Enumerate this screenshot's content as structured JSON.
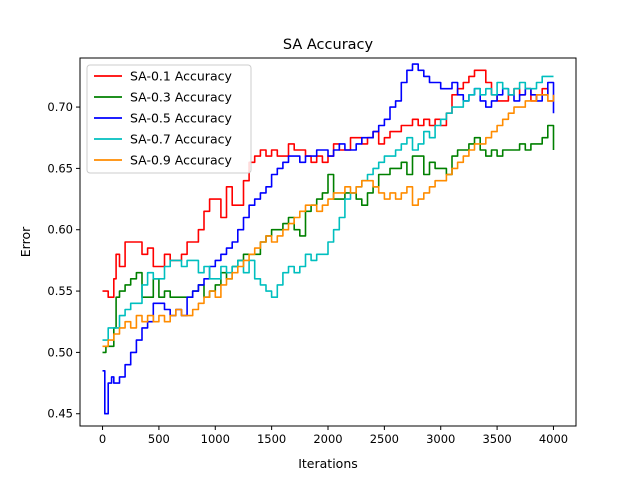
{
  "chart_data": {
    "type": "line",
    "title": "SA Accuracy",
    "xlabel": "Iterations",
    "ylabel": "Error",
    "xlim": [
      -200,
      4200
    ],
    "ylim": [
      0.44,
      0.74
    ],
    "xticks": [
      0,
      500,
      1000,
      1500,
      2000,
      2500,
      3000,
      3500,
      4000
    ],
    "xtick_labels": [
      "0",
      "500",
      "1000",
      "1500",
      "2000",
      "2500",
      "3000",
      "3500",
      "4000"
    ],
    "yticks": [
      0.45,
      0.5,
      0.55,
      0.6,
      0.65,
      0.7
    ],
    "ytick_labels": [
      "0.45",
      "0.50",
      "0.55",
      "0.60",
      "0.65",
      "0.70"
    ],
    "grid": false,
    "legend_position": "upper-left",
    "series": [
      {
        "name": "SA-0.1 Accuracy",
        "color": "#ff0000",
        "x": [
          0,
          50,
          100,
          120,
          150,
          200,
          250,
          300,
          350,
          400,
          450,
          500,
          550,
          600,
          650,
          700,
          750,
          800,
          850,
          900,
          950,
          1000,
          1050,
          1100,
          1150,
          1200,
          1250,
          1300,
          1350,
          1400,
          1450,
          1500,
          1550,
          1600,
          1650,
          1700,
          1750,
          1800,
          1850,
          1900,
          1950,
          2000,
          2050,
          2100,
          2150,
          2200,
          2250,
          2300,
          2350,
          2400,
          2450,
          2500,
          2550,
          2600,
          2650,
          2700,
          2750,
          2800,
          2850,
          2900,
          2950,
          3000,
          3050,
          3100,
          3150,
          3200,
          3250,
          3300,
          3350,
          3400,
          3450,
          3500,
          3550,
          3600,
          3650,
          3700,
          3750,
          3800,
          3850,
          3900,
          3950,
          4000
        ],
        "y": [
          0.55,
          0.545,
          0.56,
          0.58,
          0.57,
          0.59,
          0.59,
          0.59,
          0.58,
          0.585,
          0.57,
          0.57,
          0.58,
          0.575,
          0.575,
          0.58,
          0.59,
          0.59,
          0.6,
          0.615,
          0.625,
          0.625,
          0.61,
          0.635,
          0.62,
          0.62,
          0.64,
          0.655,
          0.66,
          0.665,
          0.66,
          0.665,
          0.66,
          0.66,
          0.67,
          0.665,
          0.665,
          0.66,
          0.655,
          0.66,
          0.655,
          0.66,
          0.67,
          0.665,
          0.665,
          0.675,
          0.675,
          0.67,
          0.675,
          0.68,
          0.67,
          0.675,
          0.68,
          0.68,
          0.685,
          0.685,
          0.69,
          0.685,
          0.69,
          0.685,
          0.69,
          0.685,
          0.695,
          0.71,
          0.715,
          0.72,
          0.725,
          0.73,
          0.73,
          0.72,
          0.71,
          0.705,
          0.705,
          0.71,
          0.715,
          0.71,
          0.715,
          0.705,
          0.71,
          0.715,
          0.705,
          0.705
        ]
      },
      {
        "name": "SA-0.3 Accuracy",
        "color": "#008000",
        "x": [
          0,
          30,
          60,
          100,
          120,
          150,
          200,
          250,
          300,
          350,
          400,
          450,
          500,
          550,
          600,
          650,
          700,
          750,
          800,
          850,
          900,
          950,
          1000,
          1050,
          1100,
          1150,
          1200,
          1250,
          1300,
          1350,
          1400,
          1450,
          1500,
          1550,
          1600,
          1650,
          1700,
          1750,
          1800,
          1850,
          1900,
          1950,
          2000,
          2050,
          2100,
          2150,
          2200,
          2250,
          2300,
          2350,
          2400,
          2450,
          2500,
          2550,
          2600,
          2650,
          2700,
          2750,
          2800,
          2850,
          2900,
          2950,
          3000,
          3050,
          3100,
          3150,
          3200,
          3250,
          3300,
          3350,
          3400,
          3450,
          3500,
          3550,
          3600,
          3650,
          3700,
          3750,
          3800,
          3850,
          3900,
          3950,
          4000
        ],
        "y": [
          0.5,
          0.505,
          0.505,
          0.52,
          0.545,
          0.55,
          0.555,
          0.56,
          0.565,
          0.545,
          0.545,
          0.56,
          0.545,
          0.55,
          0.545,
          0.545,
          0.545,
          0.545,
          0.55,
          0.555,
          0.545,
          0.55,
          0.555,
          0.565,
          0.56,
          0.57,
          0.575,
          0.58,
          0.58,
          0.58,
          0.59,
          0.595,
          0.6,
          0.6,
          0.605,
          0.61,
          0.6,
          0.595,
          0.615,
          0.62,
          0.625,
          0.63,
          0.645,
          0.625,
          0.625,
          0.63,
          0.63,
          0.625,
          0.62,
          0.63,
          0.635,
          0.645,
          0.645,
          0.65,
          0.65,
          0.655,
          0.645,
          0.66,
          0.66,
          0.645,
          0.655,
          0.65,
          0.65,
          0.645,
          0.66,
          0.665,
          0.665,
          0.67,
          0.675,
          0.665,
          0.66,
          0.665,
          0.66,
          0.665,
          0.665,
          0.665,
          0.67,
          0.665,
          0.67,
          0.67,
          0.675,
          0.685,
          0.665
        ]
      },
      {
        "name": "SA-0.5 Accuracy",
        "color": "#0000ff",
        "x": [
          0,
          20,
          50,
          80,
          100,
          150,
          200,
          250,
          300,
          350,
          400,
          450,
          500,
          550,
          600,
          650,
          700,
          750,
          800,
          850,
          900,
          950,
          1000,
          1050,
          1100,
          1150,
          1200,
          1250,
          1300,
          1350,
          1400,
          1450,
          1500,
          1550,
          1600,
          1650,
          1700,
          1750,
          1800,
          1850,
          1900,
          1950,
          2000,
          2050,
          2100,
          2150,
          2200,
          2250,
          2300,
          2350,
          2400,
          2450,
          2500,
          2550,
          2600,
          2650,
          2700,
          2750,
          2800,
          2850,
          2900,
          2950,
          3000,
          3050,
          3100,
          3150,
          3200,
          3250,
          3300,
          3350,
          3400,
          3450,
          3500,
          3550,
          3600,
          3650,
          3700,
          3750,
          3800,
          3850,
          3900,
          3950,
          4000
        ],
        "y": [
          0.485,
          0.45,
          0.475,
          0.48,
          0.475,
          0.48,
          0.49,
          0.5,
          0.51,
          0.52,
          0.525,
          0.54,
          0.54,
          0.535,
          0.53,
          0.535,
          0.53,
          0.545,
          0.55,
          0.555,
          0.56,
          0.57,
          0.575,
          0.58,
          0.585,
          0.59,
          0.6,
          0.61,
          0.62,
          0.625,
          0.63,
          0.635,
          0.645,
          0.65,
          0.655,
          0.66,
          0.66,
          0.655,
          0.66,
          0.66,
          0.665,
          0.665,
          0.66,
          0.665,
          0.67,
          0.665,
          0.665,
          0.67,
          0.675,
          0.675,
          0.68,
          0.685,
          0.69,
          0.7,
          0.705,
          0.72,
          0.73,
          0.735,
          0.73,
          0.725,
          0.72,
          0.72,
          0.715,
          0.715,
          0.72,
          0.71,
          0.705,
          0.71,
          0.715,
          0.705,
          0.7,
          0.705,
          0.71,
          0.715,
          0.71,
          0.705,
          0.71,
          0.715,
          0.71,
          0.705,
          0.71,
          0.72,
          0.695
        ]
      },
      {
        "name": "SA-0.7 Accuracy",
        "color": "#00bfbf",
        "x": [
          0,
          50,
          100,
          150,
          200,
          250,
          300,
          350,
          400,
          450,
          500,
          550,
          600,
          650,
          700,
          750,
          800,
          850,
          900,
          950,
          1000,
          1050,
          1100,
          1150,
          1200,
          1250,
          1300,
          1350,
          1400,
          1450,
          1500,
          1550,
          1600,
          1650,
          1700,
          1750,
          1800,
          1850,
          1900,
          1950,
          2000,
          2050,
          2100,
          2150,
          2200,
          2250,
          2300,
          2350,
          2400,
          2450,
          2500,
          2550,
          2600,
          2650,
          2700,
          2750,
          2800,
          2850,
          2900,
          2950,
          3000,
          3050,
          3100,
          3150,
          3200,
          3250,
          3300,
          3350,
          3400,
          3450,
          3500,
          3550,
          3600,
          3650,
          3700,
          3750,
          3800,
          3850,
          3900,
          3950,
          4000
        ],
        "y": [
          0.51,
          0.52,
          0.52,
          0.53,
          0.535,
          0.54,
          0.54,
          0.555,
          0.565,
          0.56,
          0.56,
          0.57,
          0.575,
          0.575,
          0.57,
          0.575,
          0.575,
          0.565,
          0.57,
          0.56,
          0.56,
          0.57,
          0.565,
          0.57,
          0.575,
          0.565,
          0.575,
          0.56,
          0.555,
          0.55,
          0.545,
          0.555,
          0.565,
          0.57,
          0.565,
          0.57,
          0.58,
          0.575,
          0.58,
          0.58,
          0.59,
          0.6,
          0.61,
          0.625,
          0.63,
          0.635,
          0.64,
          0.645,
          0.65,
          0.655,
          0.66,
          0.66,
          0.665,
          0.67,
          0.675,
          0.665,
          0.67,
          0.68,
          0.675,
          0.685,
          0.69,
          0.695,
          0.7,
          0.7,
          0.705,
          0.71,
          0.715,
          0.71,
          0.715,
          0.71,
          0.72,
          0.715,
          0.71,
          0.715,
          0.72,
          0.715,
          0.715,
          0.72,
          0.725,
          0.725,
          0.725
        ]
      },
      {
        "name": "SA-0.9 Accuracy",
        "color": "#ff8c00",
        "x": [
          0,
          50,
          100,
          150,
          200,
          250,
          300,
          350,
          400,
          450,
          500,
          550,
          600,
          650,
          700,
          750,
          800,
          850,
          900,
          950,
          1000,
          1050,
          1100,
          1150,
          1200,
          1250,
          1300,
          1350,
          1400,
          1450,
          1500,
          1550,
          1600,
          1650,
          1700,
          1750,
          1800,
          1850,
          1900,
          1950,
          2000,
          2050,
          2100,
          2150,
          2200,
          2250,
          2300,
          2350,
          2400,
          2450,
          2500,
          2550,
          2600,
          2650,
          2700,
          2750,
          2800,
          2850,
          2900,
          2950,
          3000,
          3050,
          3100,
          3150,
          3200,
          3250,
          3300,
          3350,
          3400,
          3450,
          3500,
          3550,
          3600,
          3650,
          3700,
          3750,
          3800,
          3850,
          3900,
          3950,
          4000
        ],
        "y": [
          0.505,
          0.51,
          0.515,
          0.52,
          0.525,
          0.52,
          0.53,
          0.525,
          0.53,
          0.525,
          0.53,
          0.525,
          0.53,
          0.535,
          0.53,
          0.53,
          0.535,
          0.54,
          0.545,
          0.55,
          0.545,
          0.555,
          0.56,
          0.565,
          0.57,
          0.575,
          0.58,
          0.585,
          0.59,
          0.595,
          0.59,
          0.595,
          0.6,
          0.605,
          0.61,
          0.615,
          0.62,
          0.62,
          0.615,
          0.62,
          0.625,
          0.63,
          0.63,
          0.635,
          0.63,
          0.635,
          0.64,
          0.64,
          0.635,
          0.63,
          0.625,
          0.63,
          0.625,
          0.63,
          0.635,
          0.62,
          0.625,
          0.63,
          0.635,
          0.64,
          0.64,
          0.645,
          0.65,
          0.655,
          0.66,
          0.665,
          0.67,
          0.67,
          0.675,
          0.68,
          0.685,
          0.69,
          0.695,
          0.7,
          0.7,
          0.705,
          0.705,
          0.71,
          0.71,
          0.705,
          0.71
        ]
      }
    ]
  }
}
